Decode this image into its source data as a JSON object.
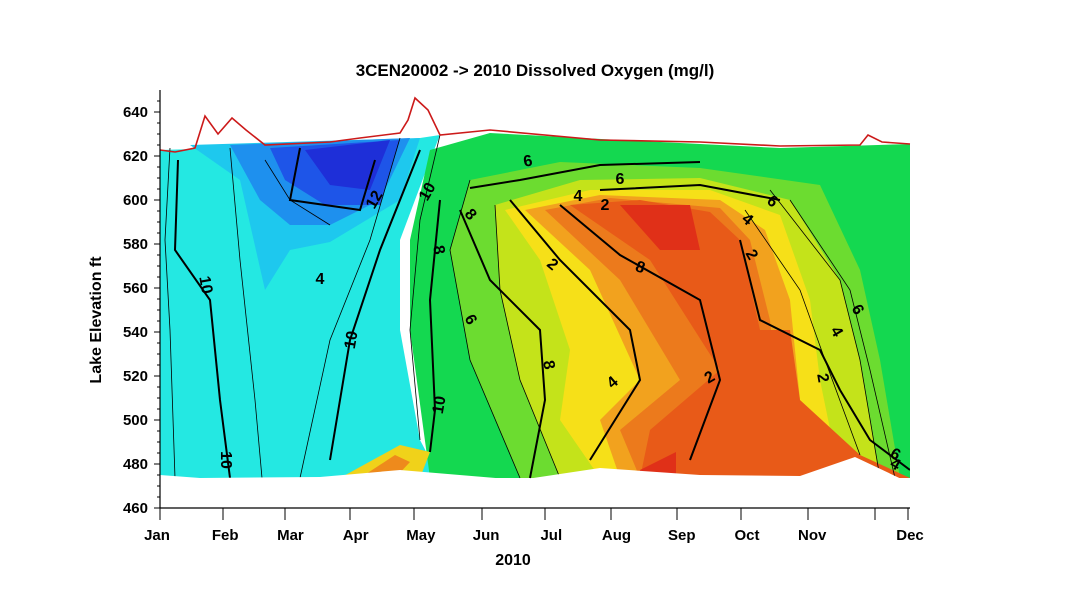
{
  "chart_data": {
    "type": "heatmap",
    "title": "3CEN20002  ->  2010 Dissolved Oxygen (mg/l)",
    "xlabel": "2010",
    "ylabel": "Lake  Elevation  ft",
    "x_ticks": [
      "Jan",
      "Feb",
      "Mar",
      "Apr",
      "May",
      "Jun",
      "Jul",
      "Aug",
      "Sep",
      "Oct",
      "Nov",
      "Dec"
    ],
    "x_tick_months": [
      1,
      2,
      3,
      4,
      5,
      6,
      7,
      8,
      9,
      10,
      11,
      12.5
    ],
    "xlim": [
      1,
      12.5
    ],
    "ylim": [
      460,
      650
    ],
    "y_ticks": [
      460,
      480,
      500,
      520,
      540,
      560,
      580,
      600,
      620,
      640
    ],
    "contour_labels": [
      "10",
      "10",
      "10",
      "12",
      "10",
      "8",
      "10",
      "8",
      "8",
      "6",
      "6",
      "8",
      "4",
      "2",
      "6",
      "4",
      "2",
      "6",
      "4",
      "2",
      "6",
      "4",
      "2",
      "2",
      "4",
      "6",
      "4"
    ],
    "colors": {
      "high": "#1e2fd8",
      "mid": "#12d65a",
      "low": "#e85a18",
      "surface_line": "#cc1a1a"
    }
  }
}
